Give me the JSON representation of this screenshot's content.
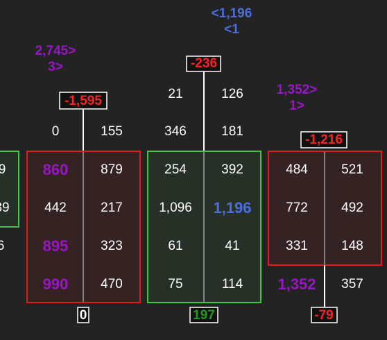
{
  "left_partial": {
    "cells": [
      "9",
      "39",
      "6"
    ]
  },
  "columns": [
    {
      "imbalance": [
        "2,745>",
        "3>"
      ],
      "delta": "-1,595",
      "above": [
        [
          "0",
          "155"
        ]
      ],
      "cells": [
        [
          "860",
          "879"
        ],
        [
          "442",
          "217"
        ],
        [
          "895",
          "323"
        ],
        [
          "990",
          "470"
        ]
      ],
      "footer": "0"
    },
    {
      "imbalance": [
        "<1,196",
        "<1"
      ],
      "delta": "-236",
      "above": [
        [
          "21",
          "126"
        ],
        [
          "346",
          "181"
        ]
      ],
      "cells": [
        [
          "254",
          "392"
        ],
        [
          "1,096",
          "1,196"
        ],
        [
          "61",
          "41"
        ],
        [
          "75",
          "114"
        ]
      ],
      "footer": "197"
    },
    {
      "imbalance": [
        "1,352>",
        "1>"
      ],
      "delta": "-1,216",
      "above": [],
      "cells": [
        [
          "484",
          "521"
        ],
        [
          "772",
          "492"
        ],
        [
          "331",
          "148"
        ]
      ],
      "below": [
        "1,352",
        "357"
      ],
      "footer": "-79"
    }
  ]
}
